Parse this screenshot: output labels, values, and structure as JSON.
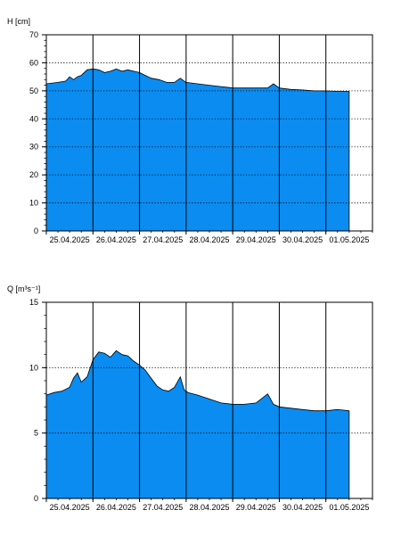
{
  "colors": {
    "fill": "#0a8cf0",
    "outline": "#000000",
    "axis": "#000000",
    "grid": "#000000",
    "background": "#ffffff"
  },
  "chart_data": [
    {
      "type": "area",
      "title": "",
      "ylabel": "H [cm]",
      "xlabel": "",
      "ylim": [
        0,
        70
      ],
      "yticks": [
        "0",
        "10",
        "20",
        "30",
        "40",
        "50",
        "60",
        "70"
      ],
      "xlim": [
        "25.04.2025 00:00",
        "01.05.2025 23:00"
      ],
      "xticks": [
        "25.04.2025",
        "26.04.2025",
        "27.04.2025",
        "28.04.2025",
        "29.04.2025",
        "30.04.2025",
        "01.05.2025"
      ],
      "grid": {
        "vertical": "solid at day boundaries",
        "horizontal": "dotted"
      },
      "legend": "none",
      "series": [
        {
          "x": [
            "25.04.2025 00:00",
            "25.04.2025 06:00",
            "25.04.2025 10:00",
            "25.04.2025 12:00",
            "25.04.2025 14:00",
            "25.04.2025 16:00",
            "25.04.2025 18:00",
            "25.04.2025 21:00",
            "26.04.2025 00:00",
            "26.04.2025 03:00",
            "26.04.2025 06:00",
            "26.04.2025 09:00",
            "26.04.2025 12:00",
            "26.04.2025 15:00",
            "26.04.2025 18:00",
            "26.04.2025 21:00",
            "27.04.2025 00:00",
            "27.04.2025 03:00",
            "27.04.2025 06:00",
            "27.04.2025 10:00",
            "27.04.2025 14:00",
            "27.04.2025 18:00",
            "27.04.2025 21:00",
            "27.04.2025 23:00",
            "28.04.2025 00:00",
            "28.04.2025 06:00",
            "28.04.2025 12:00",
            "28.04.2025 18:00",
            "29.04.2025 00:00",
            "29.04.2025 06:00",
            "29.04.2025 12:00",
            "29.04.2025 18:00",
            "29.04.2025 21:00",
            "30.04.2025 00:00",
            "30.04.2025 06:00",
            "30.04.2025 12:00",
            "30.04.2025 18:00",
            "01.05.2025 00:00",
            "01.05.2025 06:00",
            "01.05.2025 12:00"
          ],
          "y": [
            52.5,
            53,
            53.5,
            55,
            54,
            55,
            55.5,
            57.5,
            57.8,
            57.5,
            56.5,
            57,
            57.8,
            57,
            57.5,
            57,
            56.5,
            55.5,
            54.5,
            54,
            53,
            53,
            54.5,
            53.5,
            53,
            52.5,
            52,
            51.5,
            51,
            51,
            51,
            51,
            52.5,
            51,
            50.5,
            50.3,
            50,
            50,
            49.8,
            49.8
          ]
        }
      ]
    },
    {
      "type": "area",
      "title": "",
      "ylabel": "Q [m³s⁻¹]",
      "xlabel": "",
      "ylim": [
        0,
        15
      ],
      "yticks": [
        "0",
        "5",
        "10",
        "15"
      ],
      "xlim": [
        "25.04.2025 00:00",
        "01.05.2025 23:00"
      ],
      "xticks": [
        "25.04.2025",
        "26.04.2025",
        "27.04.2025",
        "28.04.2025",
        "29.04.2025",
        "30.04.2025",
        "01.05.2025"
      ],
      "grid": {
        "vertical": "solid at day boundaries",
        "horizontal": "dotted"
      },
      "legend": "none",
      "series": [
        {
          "x": [
            "25.04.2025 00:00",
            "25.04.2025 04:00",
            "25.04.2025 08:00",
            "25.04.2025 12:00",
            "25.04.2025 14:00",
            "25.04.2025 16:00",
            "25.04.2025 18:00",
            "25.04.2025 21:00",
            "26.04.2025 00:00",
            "26.04.2025 03:00",
            "26.04.2025 06:00",
            "26.04.2025 09:00",
            "26.04.2025 12:00",
            "26.04.2025 15:00",
            "26.04.2025 18:00",
            "26.04.2025 21:00",
            "27.04.2025 00:00",
            "27.04.2025 03:00",
            "27.04.2025 06:00",
            "27.04.2025 09:00",
            "27.04.2025 12:00",
            "27.04.2025 15:00",
            "27.04.2025 18:00",
            "27.04.2025 21:00",
            "27.04.2025 23:00",
            "28.04.2025 01:00",
            "28.04.2025 06:00",
            "28.04.2025 12:00",
            "28.04.2025 18:00",
            "29.04.2025 00:00",
            "29.04.2025 06:00",
            "29.04.2025 12:00",
            "29.04.2025 18:00",
            "29.04.2025 21:00",
            "30.04.2025 00:00",
            "30.04.2025 06:00",
            "30.04.2025 12:00",
            "30.04.2025 18:00",
            "01.05.2025 00:00",
            "01.05.2025 06:00",
            "01.05.2025 12:00"
          ],
          "y": [
            7.9,
            8.1,
            8.2,
            8.5,
            9.2,
            9.6,
            8.9,
            9.3,
            10.6,
            11.2,
            11.1,
            10.8,
            11.3,
            11.0,
            10.9,
            10.5,
            10.2,
            9.8,
            9.2,
            8.6,
            8.3,
            8.2,
            8.5,
            9.3,
            8.3,
            8.1,
            7.9,
            7.6,
            7.3,
            7.2,
            7.2,
            7.3,
            8.0,
            7.2,
            7.0,
            6.9,
            6.8,
            6.7,
            6.7,
            6.8,
            6.7
          ]
        }
      ]
    }
  ]
}
